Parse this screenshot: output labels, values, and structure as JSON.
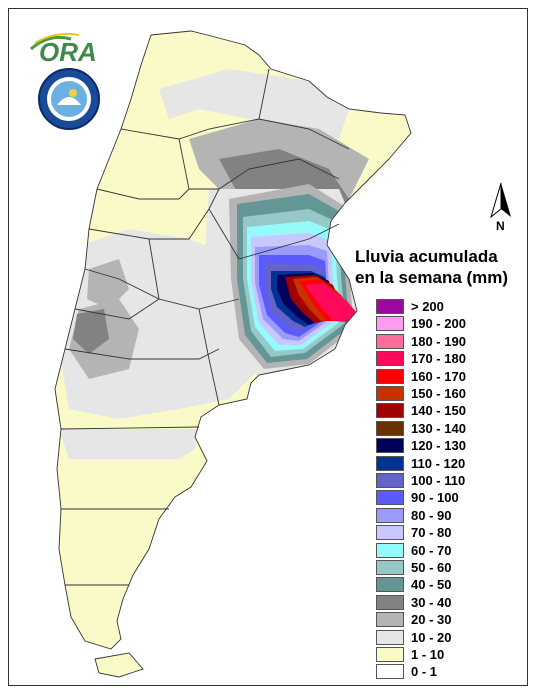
{
  "logos": {
    "ora_text": "ORA",
    "seal_text": "SERVICIO METEOROLÓGICO NACIONAL · ARGENTINA"
  },
  "north_label": "N",
  "legend": {
    "title_line1": "Lluvia acumulada",
    "title_line2": "en la semana (mm)",
    "items": [
      {
        "label": "> 200",
        "color": "#9a0aa0"
      },
      {
        "label": "190 - 200",
        "color": "#ff9cf2"
      },
      {
        "label": "180 - 190",
        "color": "#ff6c9a"
      },
      {
        "label": "170 - 180",
        "color": "#ff0a5a"
      },
      {
        "label": "160 - 170",
        "color": "#ff0000"
      },
      {
        "label": "150 - 160",
        "color": "#c83200"
      },
      {
        "label": "140 - 150",
        "color": "#a00000"
      },
      {
        "label": "130 - 140",
        "color": "#6a3200"
      },
      {
        "label": "120 - 130",
        "color": "#00005a"
      },
      {
        "label": "110 - 120",
        "color": "#003296"
      },
      {
        "label": "100 - 110",
        "color": "#6464c8"
      },
      {
        "label": "90 - 100",
        "color": "#5a5aff"
      },
      {
        "label": "80 - 90",
        "color": "#9a9aff"
      },
      {
        "label": "70 - 80",
        "color": "#c8c8ff"
      },
      {
        "label": "60 - 70",
        "color": "#96fafa"
      },
      {
        "label": "50 - 60",
        "color": "#96c8c8"
      },
      {
        "label": "40 - 50",
        "color": "#649696"
      },
      {
        "label": "30 - 40",
        "color": "#828282"
      },
      {
        "label": "20 - 30",
        "color": "#b4b4b4"
      },
      {
        "label": "10 - 20",
        "color": "#e6e6e6"
      },
      {
        "label": "1 - 10",
        "color": "#fafac8"
      },
      {
        "label": "0 - 1",
        "color": "#ffffff"
      }
    ]
  }
}
